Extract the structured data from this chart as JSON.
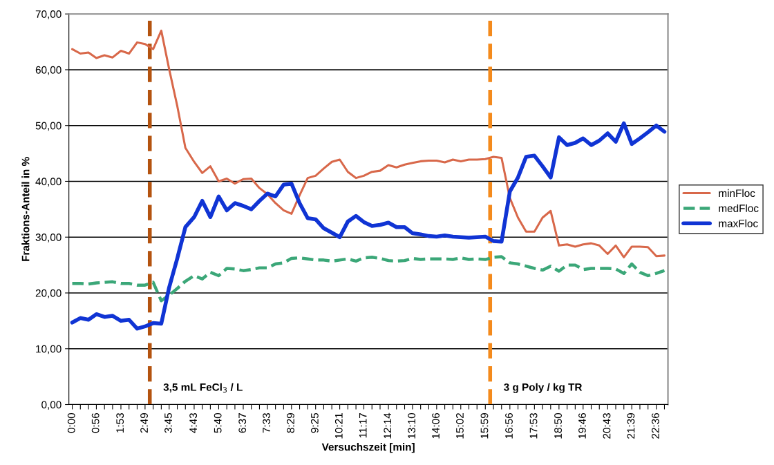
{
  "chart_data": {
    "type": "line",
    "xlabel": "Versuchszeit [min]",
    "ylabel": "Fraktions-Anteil in %",
    "x": [
      0,
      0.314,
      0.628,
      0.9333,
      1.247,
      1.561,
      1.8833,
      2.197,
      2.511,
      2.8167,
      3.131,
      3.445,
      3.75,
      4.064,
      4.378,
      4.7167,
      5.03,
      5.344,
      5.6667,
      5.98,
      6.294,
      6.6167,
      6.93,
      7.244,
      7.55,
      7.864,
      8.178,
      8.4833,
      8.797,
      9.111,
      9.4167,
      9.73,
      10.044,
      10.35,
      10.664,
      10.978,
      11.2833,
      11.597,
      11.911,
      12.2333,
      12.547,
      12.861,
      13.1667,
      13.48,
      13.794,
      14.1,
      14.414,
      14.728,
      15.0333,
      15.347,
      15.661,
      15.9833,
      16.297,
      16.611,
      16.9333,
      17.247,
      17.561,
      17.8833,
      18.197,
      18.511,
      18.8333,
      19.147,
      19.461,
      19.7667,
      20.08,
      20.394,
      20.7167,
      21.03,
      21.344,
      21.65,
      21.964,
      22.278,
      22.6,
      22.914
    ],
    "series": [
      {
        "name": "minFloc",
        "color": "#d8684a",
        "line_style": "solid",
        "values": [
          63.7,
          62.9,
          63.1,
          62.1,
          62.6,
          62.2,
          63.4,
          62.9,
          64.9,
          64.6,
          63.7,
          67.0,
          60.1,
          53.5,
          46.0,
          43.5,
          41.5,
          42.7,
          40.0,
          40.5,
          39.6,
          40.4,
          40.5,
          38.8,
          37.7,
          36.1,
          34.8,
          34.2,
          37.5,
          40.6,
          41.0,
          42.3,
          43.5,
          43.9,
          41.7,
          40.6,
          41.0,
          41.7,
          41.9,
          42.9,
          42.5,
          43.0,
          43.3,
          43.6,
          43.7,
          43.7,
          43.4,
          43.9,
          43.6,
          43.9,
          43.9,
          44.0,
          44.4,
          44.2,
          37.0,
          33.5,
          31.0,
          31.0,
          33.5,
          34.7,
          28.5,
          28.7,
          28.3,
          28.7,
          28.9,
          28.5,
          27.0,
          28.5,
          26.4,
          28.3,
          28.3,
          28.2,
          26.6,
          26.7
        ]
      },
      {
        "name": "medFloc",
        "color": "#3ba778",
        "line_style": "dashed",
        "values": [
          21.7,
          21.7,
          21.6,
          21.8,
          21.9,
          22.0,
          21.7,
          21.7,
          21.4,
          21.4,
          21.9,
          18.6,
          19.6,
          20.8,
          22.1,
          23.1,
          22.5,
          23.7,
          23.1,
          24.4,
          24.3,
          24.0,
          24.2,
          24.5,
          24.5,
          25.2,
          25.4,
          26.2,
          26.3,
          26.1,
          25.9,
          25.9,
          25.7,
          25.9,
          26.1,
          25.7,
          26.3,
          26.4,
          26.2,
          25.8,
          25.7,
          25.8,
          26.2,
          26.0,
          26.1,
          26.1,
          26.1,
          26.0,
          26.3,
          26.0,
          26.1,
          26.0,
          26.4,
          26.5,
          25.4,
          25.2,
          24.8,
          24.4,
          24.1,
          24.8,
          23.9,
          25.0,
          25.0,
          24.2,
          24.4,
          24.4,
          24.4,
          24.3,
          23.5,
          25.2,
          23.7,
          23.1,
          23.5,
          24.0
        ]
      },
      {
        "name": "maxFloc",
        "color": "#1034d4",
        "line_style": "solid",
        "values": [
          14.7,
          15.5,
          15.2,
          16.2,
          15.7,
          15.9,
          15.0,
          15.2,
          13.6,
          14.0,
          14.6,
          14.5,
          21.0,
          26.2,
          31.8,
          33.6,
          36.5,
          33.6,
          37.3,
          34.8,
          36.1,
          35.6,
          35.0,
          36.5,
          37.8,
          37.3,
          39.4,
          39.6,
          36.1,
          33.4,
          33.2,
          31.6,
          30.8,
          30.0,
          32.8,
          33.8,
          32.7,
          32.0,
          32.2,
          32.6,
          31.8,
          31.8,
          30.7,
          30.5,
          30.2,
          30.1,
          30.3,
          30.1,
          30.0,
          29.9,
          30.0,
          30.1,
          29.3,
          29.2,
          38.2,
          40.7,
          44.4,
          44.6,
          42.7,
          40.7,
          47.9,
          46.5,
          46.9,
          47.7,
          46.5,
          47.3,
          48.6,
          47.1,
          50.4,
          46.7,
          47.7,
          48.8,
          50.0,
          48.9
        ]
      }
    ],
    "xlim": [
      -0.13,
      23.05
    ],
    "xticks": [
      {
        "value": 0,
        "label": "0:00"
      },
      {
        "value": 0.314,
        "label": null
      },
      {
        "value": 0.628,
        "label": null
      },
      {
        "value": 0.9333,
        "label": "0:56"
      },
      {
        "value": 1.247,
        "label": null
      },
      {
        "value": 1.561,
        "label": null
      },
      {
        "value": 1.8833,
        "label": "1:53"
      },
      {
        "value": 2.197,
        "label": null
      },
      {
        "value": 2.511,
        "label": null
      },
      {
        "value": 2.8167,
        "label": "2:49"
      },
      {
        "value": 3.131,
        "label": null
      },
      {
        "value": 3.445,
        "label": null
      },
      {
        "value": 3.75,
        "label": "3:45"
      },
      {
        "value": 4.064,
        "label": null
      },
      {
        "value": 4.378,
        "label": null
      },
      {
        "value": 4.7167,
        "label": "4:43"
      },
      {
        "value": 5.03,
        "label": null
      },
      {
        "value": 5.344,
        "label": null
      },
      {
        "value": 5.6667,
        "label": "5:40"
      },
      {
        "value": 5.98,
        "label": null
      },
      {
        "value": 6.294,
        "label": null
      },
      {
        "value": 6.6167,
        "label": "6:37"
      },
      {
        "value": 6.93,
        "label": null
      },
      {
        "value": 7.244,
        "label": null
      },
      {
        "value": 7.55,
        "label": "7:33"
      },
      {
        "value": 7.864,
        "label": null
      },
      {
        "value": 8.178,
        "label": null
      },
      {
        "value": 8.4833,
        "label": "8:29"
      },
      {
        "value": 8.797,
        "label": null
      },
      {
        "value": 9.111,
        "label": null
      },
      {
        "value": 9.4167,
        "label": "9:25"
      },
      {
        "value": 9.73,
        "label": null
      },
      {
        "value": 10.044,
        "label": null
      },
      {
        "value": 10.35,
        "label": "10:21"
      },
      {
        "value": 10.664,
        "label": null
      },
      {
        "value": 10.978,
        "label": null
      },
      {
        "value": 11.2833,
        "label": "11:17"
      },
      {
        "value": 11.597,
        "label": null
      },
      {
        "value": 11.911,
        "label": null
      },
      {
        "value": 12.2333,
        "label": "12:14"
      },
      {
        "value": 12.547,
        "label": null
      },
      {
        "value": 12.861,
        "label": null
      },
      {
        "value": 13.1667,
        "label": "13:10"
      },
      {
        "value": 13.48,
        "label": null
      },
      {
        "value": 13.794,
        "label": null
      },
      {
        "value": 14.1,
        "label": "14:06"
      },
      {
        "value": 14.414,
        "label": null
      },
      {
        "value": 14.728,
        "label": null
      },
      {
        "value": 15.0333,
        "label": "15:02"
      },
      {
        "value": 15.347,
        "label": null
      },
      {
        "value": 15.661,
        "label": null
      },
      {
        "value": 15.9833,
        "label": "15:59"
      },
      {
        "value": 16.297,
        "label": null
      },
      {
        "value": 16.611,
        "label": null
      },
      {
        "value": 16.9333,
        "label": "16:56"
      },
      {
        "value": 17.247,
        "label": null
      },
      {
        "value": 17.561,
        "label": null
      },
      {
        "value": 17.8833,
        "label": "17:53"
      },
      {
        "value": 18.197,
        "label": null
      },
      {
        "value": 18.511,
        "label": null
      },
      {
        "value": 18.8333,
        "label": "18:50"
      },
      {
        "value": 19.147,
        "label": null
      },
      {
        "value": 19.461,
        "label": null
      },
      {
        "value": 19.7667,
        "label": "19:46"
      },
      {
        "value": 20.08,
        "label": null
      },
      {
        "value": 20.394,
        "label": null
      },
      {
        "value": 20.7167,
        "label": "20:43"
      },
      {
        "value": 21.03,
        "label": null
      },
      {
        "value": 21.344,
        "label": null
      },
      {
        "value": 21.65,
        "label": "21:39"
      },
      {
        "value": 21.964,
        "label": null
      },
      {
        "value": 22.278,
        "label": null
      },
      {
        "value": 22.6,
        "label": "22:36"
      },
      {
        "value": 22.914,
        "label": null
      }
    ],
    "ylim": [
      0,
      70
    ],
    "yticks": [
      {
        "value": 0,
        "label": "0,00"
      },
      {
        "value": 10,
        "label": "10,00"
      },
      {
        "value": 20,
        "label": "20,00"
      },
      {
        "value": 30,
        "label": "30,00"
      },
      {
        "value": 40,
        "label": "40,00"
      },
      {
        "value": 50,
        "label": "50,00"
      },
      {
        "value": 60,
        "label": "60,00"
      },
      {
        "value": 70,
        "label": "70,00"
      }
    ],
    "grid": "y",
    "legend": "right",
    "marker": "none",
    "ref_lines": [
      {
        "axis": "x",
        "value": 3.0,
        "label": "3,5 mL FeCl$_{3}$ / L",
        "color": "#b4530f",
        "line_style": "dashed"
      },
      {
        "axis": "x",
        "value": 16.17,
        "label": "3 g Poly / kg TR",
        "color": "#f48a1c",
        "line_style": "dashed"
      }
    ]
  }
}
